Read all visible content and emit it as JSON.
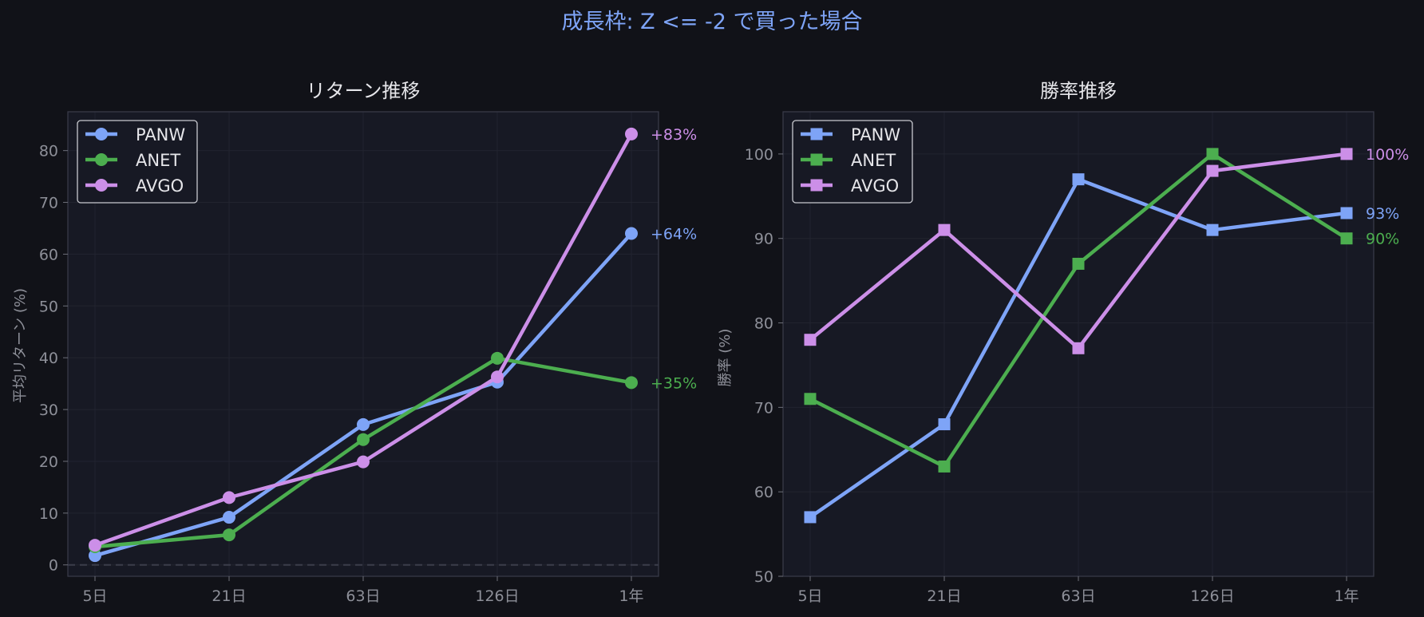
{
  "figure": {
    "title": "成長枠: Z <= -2 で買った場合",
    "title_color": "#7ea4f7",
    "background": "#111218",
    "axes_background": "#171924"
  },
  "chart_data": [
    {
      "type": "line",
      "title": "リターン推移",
      "xlabel": "",
      "ylabel": "平均リターン (%)",
      "categories": [
        "5日",
        "21日",
        "63日",
        "126日",
        "1年"
      ],
      "ylim": [
        -2.2,
        87.5
      ],
      "yticks": [
        0,
        10,
        20,
        30,
        40,
        50,
        60,
        70,
        80
      ],
      "marker": "circle",
      "zero_line": true,
      "grid": true,
      "legend": "top-left",
      "series": [
        {
          "name": "PANW",
          "color": "#7ea4f7",
          "values": [
            1.8,
            9.2,
            27.1,
            35.3,
            64
          ],
          "end_label": "+64%"
        },
        {
          "name": "ANET",
          "color": "#4cae4f",
          "values": [
            3.5,
            5.8,
            24.2,
            39.9,
            35.2
          ],
          "end_label": "+35%"
        },
        {
          "name": "AVGO",
          "color": "#cc8fe8",
          "values": [
            3.8,
            13.0,
            19.9,
            36.3,
            83.2
          ],
          "end_label": "+83%"
        }
      ]
    },
    {
      "type": "line",
      "title": "勝率推移",
      "xlabel": "",
      "ylabel": "勝率 (%)",
      "categories": [
        "5日",
        "21日",
        "63日",
        "126日",
        "1年"
      ],
      "ylim": [
        50,
        105
      ],
      "yticks": [
        50,
        60,
        70,
        80,
        90,
        100
      ],
      "marker": "square",
      "zero_line": false,
      "grid": true,
      "legend": "top-left",
      "series": [
        {
          "name": "PANW",
          "color": "#7ea4f7",
          "values": [
            57,
            68,
            97,
            91,
            93
          ],
          "end_label": "93%"
        },
        {
          "name": "ANET",
          "color": "#4cae4f",
          "values": [
            71,
            63,
            87,
            100,
            90
          ],
          "end_label": "90%"
        },
        {
          "name": "AVGO",
          "color": "#cc8fe8",
          "values": [
            78,
            91,
            77,
            98,
            100
          ],
          "end_label": "100%"
        }
      ]
    }
  ]
}
